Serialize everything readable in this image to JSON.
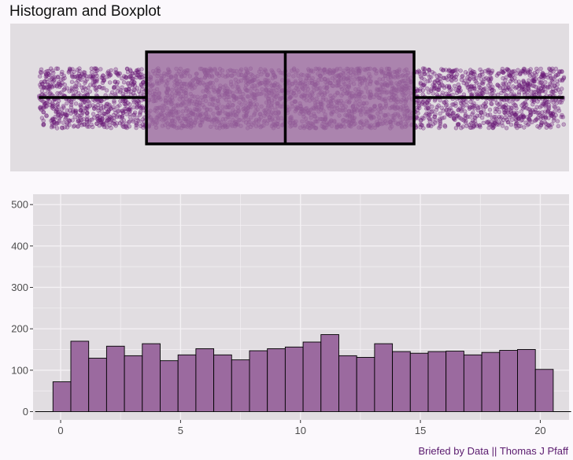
{
  "title": "Histogram and Boxplot",
  "caption": "Briefed by Data || Thomas J Pfaff",
  "colors": {
    "panel": "#e1dde1",
    "grid": "#f4f1f4",
    "fill": "#9b6a9f",
    "point": "#6a1a78",
    "outline": "#000000"
  },
  "chart_data": [
    {
      "type": "boxplot",
      "orientation": "horizontal",
      "points_overlay": "jitter",
      "xlim": [
        -1.15,
        21.2
      ],
      "stats": {
        "min": 0,
        "q1": 4.3,
        "median": 9.85,
        "q3": 15,
        "max": 21
      }
    },
    {
      "type": "bar",
      "subtype": "histogram",
      "xlim": [
        -1.15,
        21.2
      ],
      "ylim": [
        -20,
        525
      ],
      "xticks": [
        "0",
        "5",
        "10",
        "15",
        "20"
      ],
      "xtick_values": [
        0,
        5,
        10,
        15,
        20
      ],
      "yticks": [
        "0",
        "100",
        "200",
        "300",
        "400",
        "500"
      ],
      "ytick_values": [
        0,
        100,
        200,
        300,
        400,
        500
      ],
      "bin_width": 0.745,
      "bin_starts": [
        -1.065,
        -0.32,
        0.425,
        1.17,
        1.915,
        2.66,
        3.405,
        4.15,
        4.895,
        5.64,
        6.385,
        7.13,
        7.875,
        8.62,
        9.365,
        10.11,
        10.855,
        11.6,
        12.345,
        13.09,
        13.835,
        14.58,
        15.325,
        16.07,
        16.815,
        17.56,
        18.305,
        19.05,
        19.795,
        20.54
      ],
      "values": [
        0,
        72,
        170,
        129,
        158,
        135,
        164,
        123,
        137,
        152,
        137,
        125,
        147,
        152,
        156,
        168,
        186,
        135,
        131,
        164,
        145,
        141,
        145,
        146,
        137,
        143,
        148,
        150,
        102,
        0
      ]
    }
  ]
}
